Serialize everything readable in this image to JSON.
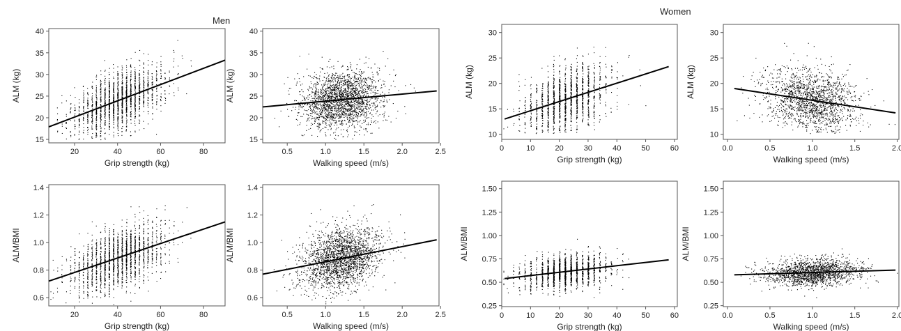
{
  "groups": [
    {
      "title": "Men"
    },
    {
      "title": "Women"
    }
  ],
  "chart_data": [
    {
      "group": "Men",
      "type": "scatter",
      "xlabel": "Grip strength (kg)",
      "ylabel": "ALM (kg)",
      "xlim": [
        8,
        90
      ],
      "ylim": [
        14.2,
        40.6
      ],
      "xticks": [
        20,
        40,
        60,
        80
      ],
      "yticks": [
        15,
        20,
        25,
        30,
        35,
        40
      ],
      "tick_decimals": [
        0,
        0
      ],
      "trend": {
        "x": [
          8,
          90
        ],
        "y": [
          17.9,
          33.3
        ]
      },
      "cloud": {
        "n": 1900,
        "x_center": 40,
        "x_sd": 10.5,
        "y_sd": 3.3,
        "x_step": 2,
        "y_min": 15,
        "y_max": 39
      }
    },
    {
      "group": "Men",
      "type": "scatter",
      "xlabel": "Walking speed (m/s)",
      "ylabel": "ALM (kg)",
      "xlim": [
        0.18,
        2.48
      ],
      "ylim": [
        14.2,
        40.6
      ],
      "xticks": [
        0.5,
        1.0,
        1.5,
        2.0,
        2.5
      ],
      "yticks": [
        15,
        20,
        25,
        30,
        35,
        40
      ],
      "tick_decimals": [
        1,
        0
      ],
      "trend": {
        "x": [
          0.18,
          2.45
        ],
        "y": [
          22.5,
          26.2
        ]
      },
      "cloud": {
        "n": 2200,
        "x_center": 1.2,
        "x_sd": 0.26,
        "y_sd": 3.4,
        "x_step": 0,
        "y_min": 15,
        "y_max": 39
      }
    },
    {
      "group": "Women",
      "type": "scatter",
      "xlabel": "Grip strength (kg)",
      "ylabel": "ALM (kg)",
      "xlim": [
        0,
        61
      ],
      "ylim": [
        9.0,
        31.6
      ],
      "xticks": [
        0,
        10,
        20,
        30,
        40,
        50,
        60
      ],
      "yticks": [
        10,
        15,
        20,
        25,
        30
      ],
      "tick_decimals": [
        0,
        0
      ],
      "trend": {
        "x": [
          1,
          58
        ],
        "y": [
          13.0,
          23.3
        ]
      },
      "cloud": {
        "n": 1500,
        "x_center": 22,
        "x_sd": 7.5,
        "y_sd": 3.2,
        "x_step": 2,
        "y_min": 10.2,
        "y_max": 31
      }
    },
    {
      "group": "Women",
      "type": "scatter",
      "xlabel": "Walking speed (m/s)",
      "ylabel": "ALM (kg)",
      "xlim": [
        -0.05,
        2.02
      ],
      "ylim": [
        9.0,
        31.6
      ],
      "xticks": [
        0.0,
        0.5,
        1.0,
        1.5,
        2.0
      ],
      "yticks": [
        10,
        15,
        20,
        25,
        30
      ],
      "tick_decimals": [
        1,
        0
      ],
      "trend": {
        "x": [
          0.08,
          1.98
        ],
        "y": [
          19.0,
          14.2
        ]
      },
      "cloud": {
        "n": 1700,
        "x_center": 1.0,
        "x_sd": 0.28,
        "y_sd": 3.3,
        "x_step": 0,
        "y_min": 10.2,
        "y_max": 31
      }
    },
    {
      "group": "Men",
      "type": "scatter",
      "xlabel": "Grip strength (kg)",
      "ylabel": "ALM/BMI",
      "xlim": [
        8,
        90
      ],
      "ylim": [
        0.54,
        1.42
      ],
      "xticks": [
        20,
        40,
        60,
        80
      ],
      "yticks": [
        0.6,
        0.8,
        1.0,
        1.2,
        1.4
      ],
      "tick_decimals": [
        0,
        1
      ],
      "trend": {
        "x": [
          8,
          90
        ],
        "y": [
          0.72,
          1.15
        ]
      },
      "cloud": {
        "n": 1900,
        "x_center": 40,
        "x_sd": 10.5,
        "y_sd": 0.11,
        "x_step": 2,
        "y_min": 0.55,
        "y_max": 1.38
      }
    },
    {
      "group": "Men",
      "type": "scatter",
      "xlabel": "Walking speed (m/s)",
      "ylabel": "ALM/BMI",
      "xlim": [
        0.18,
        2.48
      ],
      "ylim": [
        0.54,
        1.42
      ],
      "xticks": [
        0.5,
        1.0,
        1.5,
        2.0,
        2.5
      ],
      "yticks": [
        0.6,
        0.8,
        1.0,
        1.2,
        1.4
      ],
      "tick_decimals": [
        1,
        1
      ],
      "trend": {
        "x": [
          0.18,
          2.45
        ],
        "y": [
          0.77,
          1.02
        ]
      },
      "cloud": {
        "n": 2200,
        "x_center": 1.2,
        "x_sd": 0.26,
        "y_sd": 0.11,
        "x_step": 0,
        "y_min": 0.55,
        "y_max": 1.38
      }
    },
    {
      "group": "Women",
      "type": "scatter",
      "xlabel": "Grip strength (kg)",
      "ylabel": "ALM/BMI",
      "xlim": [
        0,
        61
      ],
      "ylim": [
        0.24,
        1.58
      ],
      "xticks": [
        0,
        10,
        20,
        30,
        40,
        50,
        60
      ],
      "yticks": [
        0.25,
        0.5,
        0.75,
        1.0,
        1.25,
        1.5
      ],
      "tick_decimals": [
        0,
        2
      ],
      "trend": {
        "x": [
          1,
          58
        ],
        "y": [
          0.54,
          0.74
        ]
      },
      "cloud": {
        "n": 1500,
        "x_center": 22,
        "x_sd": 7.5,
        "y_sd": 0.09,
        "x_step": 2,
        "y_min": 0.3,
        "y_max": 1.0
      }
    },
    {
      "group": "Women",
      "type": "scatter",
      "xlabel": "Walking speed (m/s)",
      "ylabel": "ALM/BMI",
      "xlim": [
        -0.05,
        2.02
      ],
      "ylim": [
        0.24,
        1.58
      ],
      "xticks": [
        0.0,
        0.5,
        1.0,
        1.5,
        2.0
      ],
      "yticks": [
        0.25,
        0.5,
        0.75,
        1.0,
        1.25,
        1.5
      ],
      "tick_decimals": [
        1,
        2
      ],
      "trend": {
        "x": [
          0.08,
          1.98
        ],
        "y": [
          0.58,
          0.63
        ]
      },
      "cloud": {
        "n": 1700,
        "x_center": 1.0,
        "x_sd": 0.28,
        "y_sd": 0.07,
        "x_step": 0,
        "y_min": 0.3,
        "y_max": 1.0
      }
    }
  ]
}
